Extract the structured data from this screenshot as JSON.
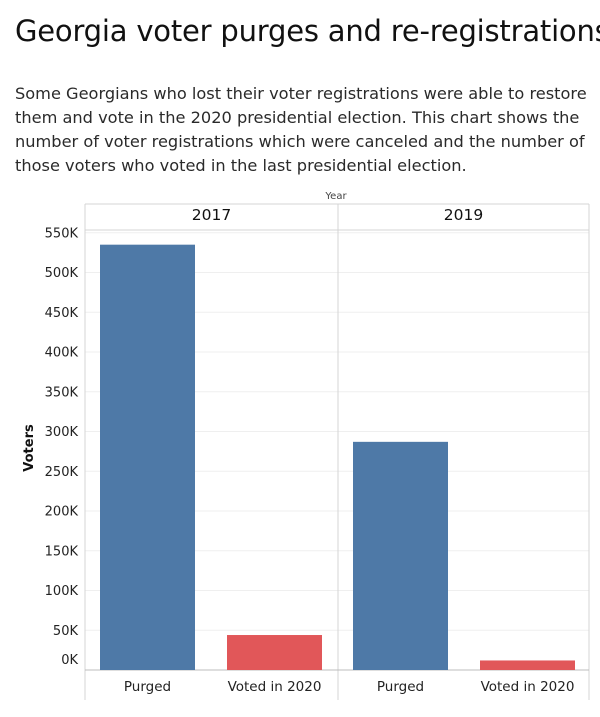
{
  "title": "Georgia voter purges and re-registrations",
  "subtitle": "Some Georgians who lost their voter registrations were able to restore them and vote in the 2020 presidential election. This chart shows the number of voter registrations which were canceled and the number of those voters who voted in the last presidential election.",
  "colors": {
    "purged": "#4e79a7",
    "voted": "#e15759"
  },
  "chart_data": {
    "type": "bar",
    "column_header": "Year",
    "ylabel": "Voters",
    "ylim": [
      0,
      560000
    ],
    "yticks": [
      0,
      50000,
      100000,
      150000,
      200000,
      250000,
      300000,
      350000,
      400000,
      450000,
      500000,
      550000
    ],
    "ytick_labels": [
      "0K",
      "50K",
      "100K",
      "150K",
      "200K",
      "250K",
      "300K",
      "350K",
      "400K",
      "450K",
      "500K",
      "550K"
    ],
    "categories": [
      "Purged",
      "Voted in 2020"
    ],
    "panels": [
      {
        "name": "2017",
        "values": [
          535000,
          44000
        ]
      },
      {
        "name": "2019",
        "values": [
          287000,
          12000
        ]
      }
    ],
    "grid": true,
    "legend": "none"
  }
}
